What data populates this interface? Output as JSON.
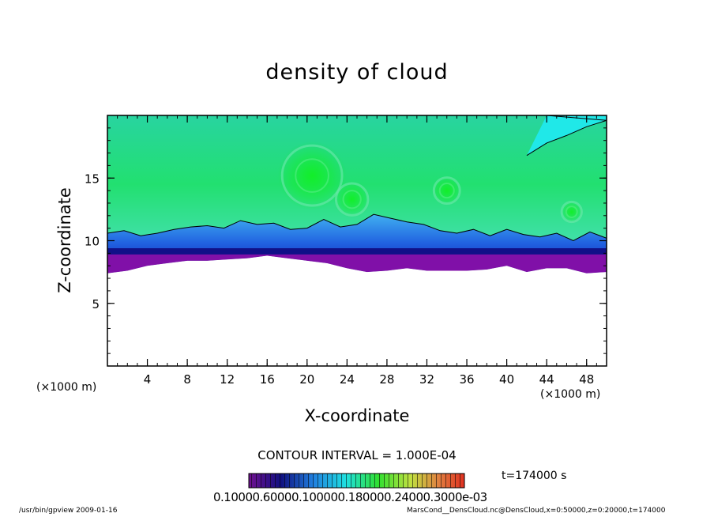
{
  "colors": {
    "background": "#ffffff",
    "axis": "#000000",
    "upper_field": "#22e070",
    "core_field": "#10ee30",
    "cyan_region": "#20e8e8",
    "blue_band": "#1838d8",
    "dark_band": "#101088",
    "purple_band": "#8010a8"
  },
  "chart_data": {
    "type": "heatmap",
    "title": "density of cloud",
    "xlabel": "X-coordinate",
    "ylabel": "Z-coordinate",
    "x_unit": "(×1000 m)",
    "y_unit": "(×1000 m)",
    "xlim": [
      0,
      50
    ],
    "ylim": [
      0,
      20
    ],
    "x_ticks": [
      4,
      8,
      12,
      16,
      20,
      24,
      28,
      32,
      36,
      40,
      44,
      48
    ],
    "y_ticks": [
      5,
      10,
      15
    ],
    "x_minor_step": 1,
    "y_minor_step": 1,
    "contour_interval": "CONTOUR INTERVAL = 1.000E-04",
    "time": "t=174000 s",
    "colorbar_labels": "0.10000.60000.100000.180000.24000.3000e-03",
    "colorbar_range": [
      0.1,
      3.0
    ],
    "lower_boundary_z": [
      7.4,
      7.6,
      8.0,
      8.2,
      8.4,
      8.4,
      8.5,
      8.6,
      8.8,
      8.6,
      8.4,
      8.2,
      7.8,
      7.5,
      7.6,
      7.8,
      7.6,
      7.6,
      7.6,
      7.7,
      8.0,
      7.5,
      7.8,
      7.8,
      7.4,
      7.5
    ],
    "top_contour_z": [
      10.6,
      10.8,
      10.4,
      10.6,
      10.9,
      11.1,
      11.2,
      11.0,
      11.6,
      11.3,
      11.4,
      10.9,
      11.0,
      11.7,
      11.1,
      11.3,
      12.1,
      11.8,
      11.5,
      11.3,
      10.8,
      10.6,
      10.9,
      10.4,
      10.9,
      10.5,
      10.3,
      10.6,
      10.0,
      10.7,
      10.2
    ],
    "band_z": {
      "purple_top": 8.9,
      "dark_top": 9.4,
      "blue_top": 10.0
    },
    "cyan_corner_contour": {
      "x": [
        42.0,
        44.0,
        46.0,
        48.0,
        50.0
      ],
      "z": [
        16.8,
        17.8,
        18.4,
        19.1,
        19.6
      ]
    },
    "swirls": [
      {
        "x": 20.5,
        "z": 15.2,
        "r": 3.0
      },
      {
        "x": 24.5,
        "z": 13.3,
        "r": 1.6
      },
      {
        "x": 34.0,
        "z": 14.0,
        "r": 1.3
      },
      {
        "x": 46.5,
        "z": 12.3,
        "r": 1.0
      }
    ]
  },
  "footer": {
    "left": "/usr/bin/gpview   2009-01-16",
    "right": "MarsCond__DensCloud.nc@DensCloud,x=0:50000,z=0:20000,t=174000"
  }
}
